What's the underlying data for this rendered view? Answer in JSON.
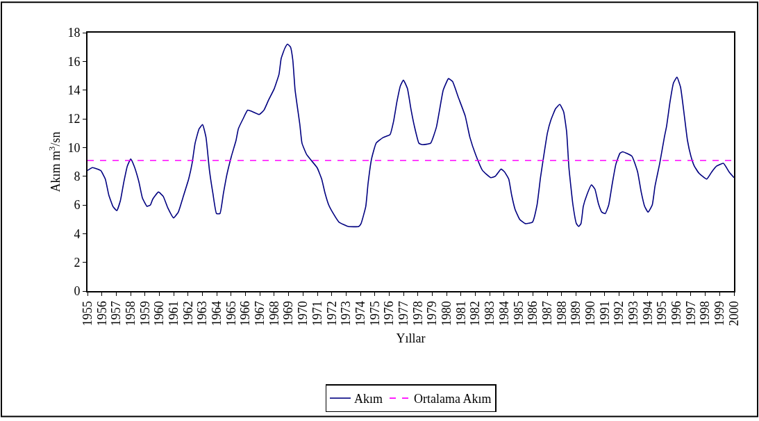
{
  "chart_data": {
    "type": "line",
    "xlabel": "Yıllar",
    "ylabel": "Akım m$^{3}$/sn",
    "x": [
      1955.0,
      1955.35,
      1955.92,
      1956.24,
      1956.48,
      1956.77,
      1957.04,
      1957.29,
      1957.53,
      1957.77,
      1958.01,
      1958.25,
      1958.58,
      1958.82,
      1959.14,
      1959.38,
      1959.54,
      1959.94,
      1960.27,
      1960.59,
      1960.99,
      1961.32,
      1961.64,
      1962.04,
      1962.28,
      1962.49,
      1962.77,
      1963.01,
      1963.25,
      1963.49,
      1963.73,
      1963.98,
      1964.22,
      1964.46,
      1964.7,
      1965.02,
      1965.34,
      1965.5,
      1965.83,
      1966.15,
      1966.47,
      1966.95,
      1967.28,
      1967.6,
      1968.0,
      1968.33,
      1968.48,
      1968.73,
      1968.92,
      1969.13,
      1969.29,
      1969.45,
      1969.78,
      1969.93,
      1970.26,
      1970.98,
      1971.3,
      1971.54,
      1971.79,
      1972.11,
      1972.51,
      1973.16,
      1973.88,
      1974.04,
      1974.37,
      1974.53,
      1974.77,
      1975.09,
      1975.58,
      1976.06,
      1976.3,
      1976.54,
      1976.78,
      1976.99,
      1977.27,
      1977.51,
      1977.75,
      1978.07,
      1978.31,
      1978.88,
      1979.28,
      1979.52,
      1979.76,
      1980.13,
      1980.41,
      1980.81,
      1981.29,
      1981.62,
      1982.02,
      1982.5,
      1983.07,
      1983.39,
      1983.79,
      1984.03,
      1984.32,
      1984.52,
      1984.76,
      1985.08,
      1985.48,
      1985.97,
      1986.29,
      1986.53,
      1986.77,
      1987.01,
      1987.25,
      1987.58,
      1987.87,
      1988.14,
      1988.35,
      1988.51,
      1988.79,
      1989.03,
      1989.19,
      1989.35,
      1989.51,
      1989.76,
      1990.08,
      1990.32,
      1990.56,
      1990.8,
      1991.04,
      1991.28,
      1991.53,
      1991.77,
      1992.06,
      1992.25,
      1992.89,
      1993.29,
      1993.54,
      1993.78,
      1994.02,
      1994.31,
      1994.5,
      1994.83,
      1995.15,
      1995.31,
      1995.55,
      1995.79,
      1996.03,
      1996.28,
      1996.52,
      1996.76,
      1997.0,
      1997.24,
      1997.57,
      1998.1,
      1998.45,
      1998.78,
      1999.26,
      1999.66,
      2000.0
    ],
    "series": [
      {
        "name": "Akım",
        "color": "#000080",
        "values": [
          8.4,
          8.6,
          8.4,
          7.8,
          6.7,
          5.9,
          5.6,
          6.3,
          7.6,
          8.7,
          9.2,
          8.7,
          7.6,
          6.5,
          5.9,
          6.0,
          6.4,
          6.9,
          6.6,
          5.8,
          5.1,
          5.5,
          6.5,
          7.8,
          8.9,
          10.3,
          11.3,
          11.6,
          10.7,
          8.4,
          6.8,
          5.4,
          5.4,
          6.8,
          8.1,
          9.4,
          10.5,
          11.3,
          12.0,
          12.6,
          12.5,
          12.3,
          12.6,
          13.3,
          14.1,
          15.1,
          16.2,
          16.9,
          17.2,
          17.0,
          16.1,
          14.0,
          11.6,
          10.3,
          9.5,
          8.6,
          7.8,
          6.8,
          6.0,
          5.4,
          4.8,
          4.5,
          4.5,
          4.7,
          5.9,
          7.5,
          9.2,
          10.3,
          10.7,
          10.9,
          11.8,
          13.2,
          14.3,
          14.7,
          14.1,
          12.7,
          11.5,
          10.3,
          10.2,
          10.3,
          11.4,
          12.7,
          14.0,
          14.8,
          14.6,
          13.5,
          12.2,
          10.7,
          9.5,
          8.4,
          7.9,
          8.0,
          8.5,
          8.3,
          7.8,
          6.7,
          5.7,
          5.0,
          4.7,
          4.8,
          6.0,
          7.9,
          9.5,
          11.0,
          11.9,
          12.7,
          13.0,
          12.5,
          11.1,
          8.6,
          6.0,
          4.7,
          4.5,
          4.7,
          5.9,
          6.7,
          7.4,
          7.1,
          6.1,
          5.5,
          5.4,
          6.0,
          7.5,
          8.8,
          9.6,
          9.7,
          9.4,
          8.3,
          6.9,
          5.9,
          5.5,
          6.0,
          7.3,
          8.9,
          10.7,
          11.5,
          13.2,
          14.5,
          14.9,
          14.2,
          12.4,
          10.5,
          9.4,
          8.7,
          8.2,
          7.8,
          8.3,
          8.7,
          8.9,
          8.3,
          7.9
        ]
      }
    ],
    "ref_lines": [
      {
        "axis": "y",
        "value": 9.1,
        "label": "Ortalama Akım",
        "color": "#ff00ff",
        "line_style": "dashed"
      }
    ],
    "xlim": [
      1955,
      2000
    ],
    "ylim": [
      0,
      18
    ],
    "xticks": [
      1955,
      1956,
      1957,
      1958,
      1959,
      1960,
      1961,
      1962,
      1963,
      1964,
      1965,
      1966,
      1967,
      1968,
      1969,
      1970,
      1971,
      1972,
      1973,
      1974,
      1975,
      1976,
      1977,
      1978,
      1979,
      1980,
      1981,
      1982,
      1983,
      1984,
      1985,
      1986,
      1987,
      1988,
      1989,
      1990,
      1991,
      1992,
      1993,
      1994,
      1995,
      1996,
      1997,
      1998,
      1999,
      2000
    ],
    "yticks": [
      0,
      2,
      4,
      6,
      8,
      10,
      12,
      14,
      16,
      18
    ],
    "grid": false,
    "legend": "bottom",
    "marker": "none",
    "line_style": "solid"
  }
}
